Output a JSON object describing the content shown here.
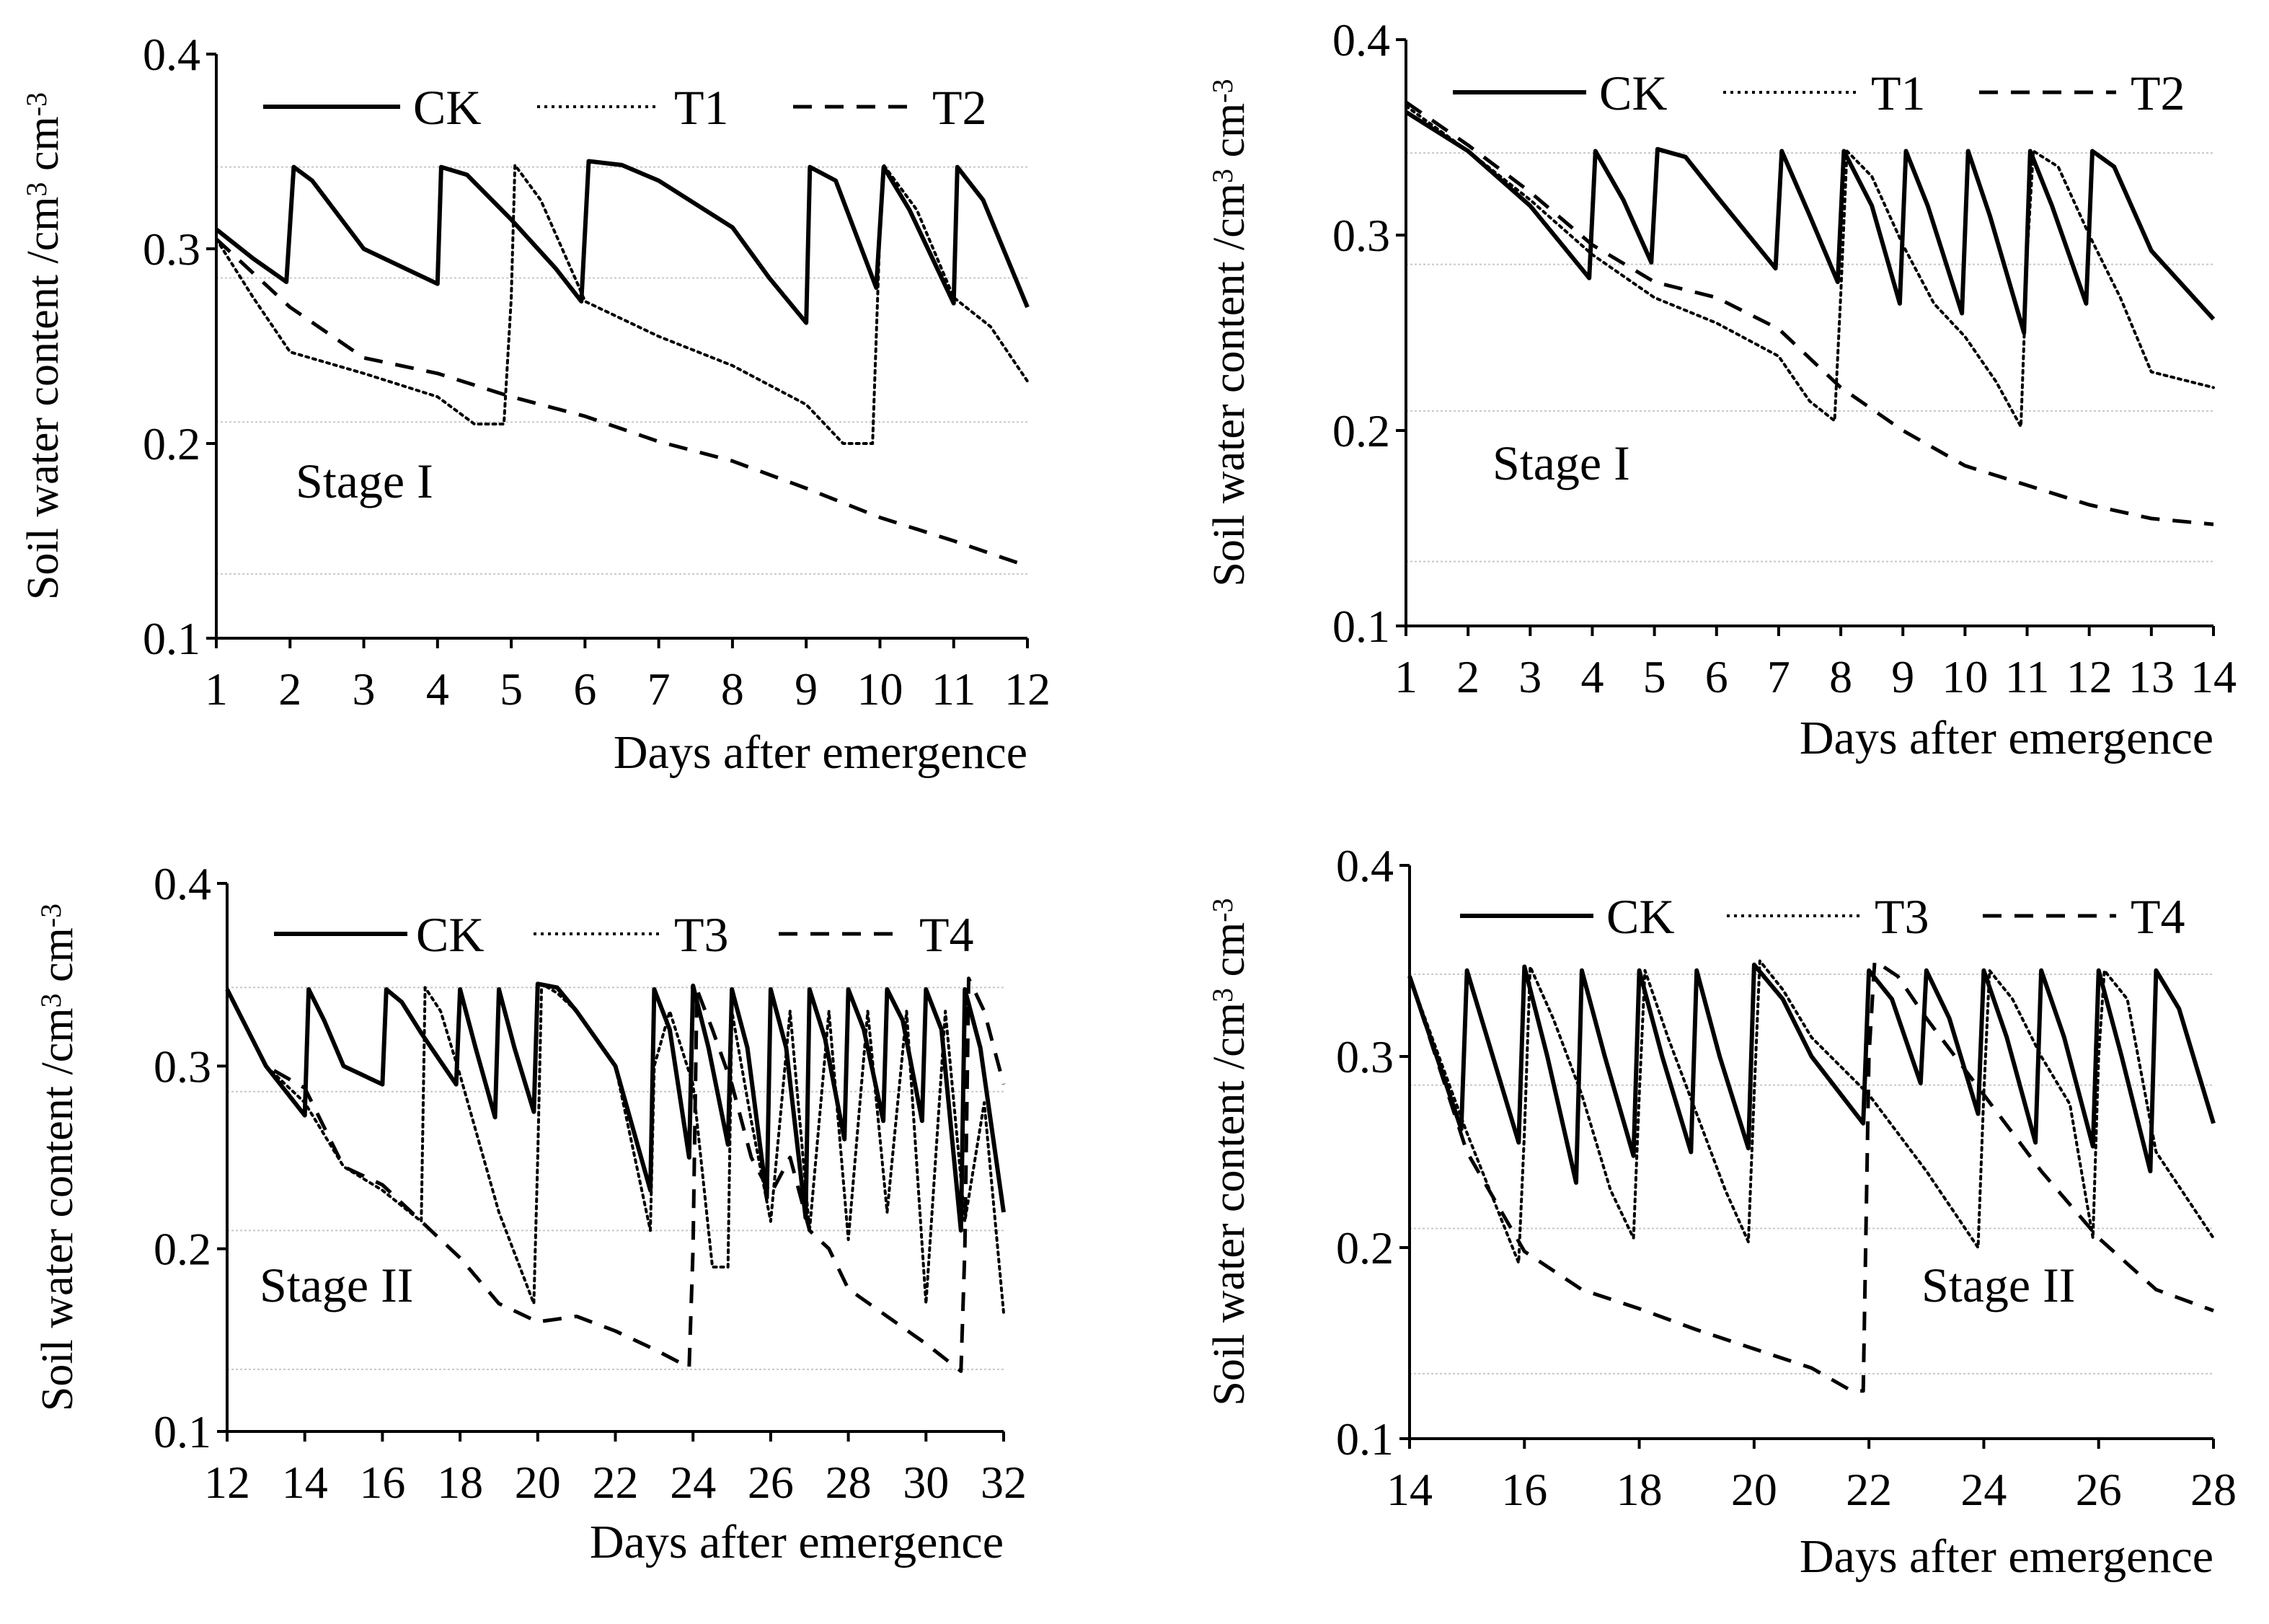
{
  "chart_data": [
    {
      "type": "line",
      "ylabel": "Soil water content /cm³ cm⁻³",
      "ylabel_main": "Soil water content /cm",
      "ylabel_sup1": "3",
      "ylabel_mid": " cm",
      "ylabel_sup2": "-3",
      "xlabel": "Days after emergence",
      "stage_label": "Stage I",
      "legend_position": "top",
      "xlim": [
        1,
        12
      ],
      "ylim": [
        0.1,
        0.4
      ],
      "x_ticks": [
        "1",
        "2",
        "3",
        "4",
        "5",
        "6",
        "7",
        "8",
        "9",
        "10",
        "11",
        "12"
      ],
      "y_ticks": [
        "0.1",
        "0.2",
        "0.3",
        "0.4"
      ],
      "reference_lines": [
        0.133,
        0.211,
        0.285,
        0.342
      ],
      "series": [
        {
          "name": "CK",
          "style": "solid",
          "x": [
            1,
            1.5,
            1.95,
            2.05,
            2.3,
            3,
            4,
            4.05,
            4.4,
            5,
            5.6,
            5.95,
            6.05,
            6.5,
            7,
            8,
            8.5,
            9,
            9.05,
            9.4,
            9.95,
            10.05,
            10.4,
            11,
            11.05,
            11.4,
            12
          ],
          "y": [
            0.31,
            0.295,
            0.283,
            0.342,
            0.335,
            0.3,
            0.282,
            0.342,
            0.338,
            0.315,
            0.29,
            0.273,
            0.345,
            0.343,
            0.335,
            0.311,
            0.285,
            0.262,
            0.342,
            0.335,
            0.28,
            0.342,
            0.32,
            0.272,
            0.342,
            0.325,
            0.27
          ]
        },
        {
          "name": "T1",
          "style": "dotted",
          "x": [
            1,
            1.5,
            2,
            3,
            4,
            4.5,
            4.9,
            5,
            5.05,
            5.4,
            5.9,
            6,
            7,
            8,
            9,
            9.5,
            9.9,
            10,
            10.05,
            10.5,
            11,
            11.5,
            12
          ],
          "y": [
            0.305,
            0.275,
            0.247,
            0.236,
            0.224,
            0.21,
            0.21,
            0.275,
            0.343,
            0.325,
            0.282,
            0.273,
            0.255,
            0.24,
            0.22,
            0.2,
            0.2,
            0.31,
            0.343,
            0.32,
            0.275,
            0.26,
            0.232
          ]
        },
        {
          "name": "T2",
          "style": "dashed",
          "x": [
            1,
            2,
            3,
            4,
            5,
            6,
            7,
            8,
            9,
            10,
            11,
            12
          ],
          "y": [
            0.305,
            0.27,
            0.244,
            0.236,
            0.224,
            0.214,
            0.201,
            0.191,
            0.177,
            0.162,
            0.15,
            0.137
          ]
        }
      ]
    },
    {
      "type": "line",
      "ylabel": "Soil water content /cm³ cm⁻³",
      "ylabel_main": "Soil water content /cm",
      "ylabel_sup1": "3",
      "ylabel_mid": " cm",
      "ylabel_sup2": "-3",
      "xlabel": "Days after emergence",
      "stage_label": "Stage I",
      "legend_position": "top",
      "xlim": [
        1,
        14
      ],
      "ylim": [
        0.1,
        0.4
      ],
      "x_ticks": [
        "1",
        "2",
        "3",
        "4",
        "5",
        "6",
        "7",
        "8",
        "9",
        "10",
        "11",
        "12",
        "13",
        "14"
      ],
      "y_ticks": [
        "0.1",
        "0.2",
        "0.3",
        "0.4"
      ],
      "reference_lines": [
        0.133,
        0.21,
        0.285,
        0.342
      ],
      "series": [
        {
          "name": "CK",
          "style": "solid",
          "x": [
            1,
            2,
            3,
            3.95,
            4.05,
            4.5,
            4.95,
            5.05,
            5.5,
            6,
            6.95,
            7.05,
            7.5,
            7.95,
            8.05,
            8.5,
            8.95,
            9.05,
            9.4,
            9.95,
            10.05,
            10.4,
            10.95,
            11.05,
            11.4,
            11.95,
            12.05,
            12.4,
            13,
            14
          ],
          "y": [
            0.363,
            0.343,
            0.315,
            0.278,
            0.343,
            0.318,
            0.286,
            0.344,
            0.34,
            0.32,
            0.283,
            0.343,
            0.31,
            0.276,
            0.343,
            0.315,
            0.265,
            0.343,
            0.315,
            0.26,
            0.343,
            0.31,
            0.25,
            0.343,
            0.315,
            0.265,
            0.343,
            0.335,
            0.292,
            0.257
          ]
        },
        {
          "name": "T1",
          "style": "dotted",
          "x": [
            1,
            2,
            3,
            4,
            5,
            6,
            7,
            7.5,
            7.9,
            8,
            8.1,
            8.5,
            9,
            9.5,
            10,
            10.5,
            10.9,
            11,
            11.1,
            11.5,
            12,
            12.5,
            13,
            14
          ],
          "y": [
            0.366,
            0.343,
            0.318,
            0.29,
            0.268,
            0.255,
            0.238,
            0.215,
            0.205,
            0.27,
            0.343,
            0.33,
            0.295,
            0.265,
            0.248,
            0.225,
            0.202,
            0.29,
            0.343,
            0.335,
            0.3,
            0.268,
            0.23,
            0.222
          ]
        },
        {
          "name": "T2",
          "style": "dashed",
          "x": [
            1,
            2,
            3,
            4,
            5,
            6,
            7,
            8,
            9,
            10,
            11,
            12,
            13,
            14
          ],
          "y": [
            0.368,
            0.346,
            0.322,
            0.295,
            0.276,
            0.268,
            0.252,
            0.222,
            0.2,
            0.182,
            0.172,
            0.162,
            0.155,
            0.152
          ]
        }
      ]
    },
    {
      "type": "line",
      "ylabel": "Soil water content /cm³ cm⁻³",
      "ylabel_main": "Soil water content /cm",
      "ylabel_sup1": "3",
      "ylabel_mid": " cm",
      "ylabel_sup2": "-3",
      "xlabel": "Days after emergence",
      "stage_label": "Stage II",
      "legend_position": "top",
      "xlim": [
        12,
        32
      ],
      "ylim": [
        0.1,
        0.4
      ],
      "x_ticks": [
        "12",
        "14",
        "16",
        "18",
        "20",
        "22",
        "24",
        "26",
        "28",
        "30",
        "32"
      ],
      "y_ticks": [
        "0.1",
        "0.2",
        "0.3",
        "0.4"
      ],
      "reference_lines": [
        0.134,
        0.21,
        0.286,
        0.343
      ],
      "series": [
        {
          "name": "CK",
          "style": "solid",
          "x": [
            12,
            13,
            14,
            14.1,
            14.5,
            15,
            16,
            16.1,
            16.5,
            17,
            17.9,
            18,
            18.4,
            18.9,
            19,
            19.4,
            19.9,
            20,
            20.5,
            21,
            22,
            22.9,
            23,
            23.4,
            23.9,
            24,
            24.4,
            24.9,
            25,
            25.4,
            25.9,
            26,
            26.4,
            26.9,
            27,
            27.4,
            27.9,
            28,
            28.4,
            28.9,
            29,
            29.4,
            29.9,
            30,
            30.4,
            30.9,
            31,
            31.4,
            32
          ],
          "y": [
            0.342,
            0.3,
            0.273,
            0.342,
            0.325,
            0.3,
            0.29,
            0.342,
            0.335,
            0.318,
            0.29,
            0.342,
            0.31,
            0.272,
            0.342,
            0.31,
            0.275,
            0.345,
            0.343,
            0.33,
            0.3,
            0.232,
            0.342,
            0.32,
            0.25,
            0.344,
            0.31,
            0.257,
            0.342,
            0.31,
            0.228,
            0.342,
            0.31,
            0.217,
            0.342,
            0.315,
            0.26,
            0.342,
            0.32,
            0.27,
            0.342,
            0.325,
            0.27,
            0.342,
            0.32,
            0.21,
            0.342,
            0.31,
            0.22
          ]
        },
        {
          "name": "T3",
          "style": "dotted",
          "x": [
            12,
            13,
            14,
            15,
            16,
            17,
            17.1,
            17.5,
            18,
            19,
            19.9,
            20,
            20.1,
            20.5,
            21,
            22,
            22.9,
            23,
            23.4,
            24,
            24.5,
            24.9,
            25,
            25.5,
            26,
            26.5,
            27,
            27.5,
            28,
            28.5,
            29,
            29.5,
            30,
            30.5,
            31,
            31.5,
            32
          ],
          "y": [
            0.342,
            0.3,
            0.28,
            0.245,
            0.232,
            0.215,
            0.343,
            0.33,
            0.295,
            0.22,
            0.17,
            0.25,
            0.345,
            0.34,
            0.33,
            0.3,
            0.21,
            0.3,
            0.33,
            0.29,
            0.19,
            0.19,
            0.33,
            0.27,
            0.215,
            0.33,
            0.21,
            0.33,
            0.205,
            0.33,
            0.22,
            0.33,
            0.17,
            0.33,
            0.215,
            0.28,
            0.165
          ]
        },
        {
          "name": "T4",
          "style": "dashed",
          "x": [
            12,
            13,
            14,
            15,
            16,
            17,
            18,
            19,
            20,
            21,
            22,
            23,
            23.9,
            24,
            24.1,
            24.5,
            25,
            25.5,
            26,
            26.5,
            27,
            27.5,
            28,
            29,
            30,
            30.9,
            31,
            31.1,
            31.5,
            32
          ],
          "y": [
            0.342,
            0.3,
            0.288,
            0.245,
            0.235,
            0.215,
            0.195,
            0.17,
            0.16,
            0.163,
            0.155,
            0.145,
            0.135,
            0.2,
            0.342,
            0.32,
            0.29,
            0.25,
            0.23,
            0.25,
            0.21,
            0.2,
            0.178,
            0.163,
            0.148,
            0.133,
            0.2,
            0.348,
            0.33,
            0.29
          ]
        }
      ]
    },
    {
      "type": "line",
      "ylabel": "Soil water content /cm³ cm⁻³",
      "ylabel_main": "Soil water content /cm",
      "ylabel_sup1": "3",
      "ylabel_mid": " cm",
      "ylabel_sup2": "-3",
      "xlabel": "Days after emergence",
      "stage_label": "Stage II",
      "legend_position": "top",
      "xlim": [
        14,
        28
      ],
      "ylim": [
        0.1,
        0.4
      ],
      "x_ticks": [
        "14",
        "16",
        "18",
        "20",
        "22",
        "24",
        "26",
        "28"
      ],
      "y_ticks": [
        "0.1",
        "0.2",
        "0.3",
        "0.4"
      ],
      "reference_lines": [
        0.134,
        0.21,
        0.285,
        0.343
      ],
      "series": [
        {
          "name": "CK",
          "style": "solid",
          "x": [
            14,
            14.9,
            15,
            15.4,
            15.9,
            16,
            16.4,
            16.9,
            17,
            17.4,
            17.9,
            18,
            18.4,
            18.9,
            19,
            19.4,
            19.9,
            20,
            20.5,
            21,
            21.9,
            22,
            22.4,
            22.9,
            23,
            23.4,
            23.9,
            24,
            24.4,
            24.9,
            25,
            25.4,
            25.9,
            26,
            26.4,
            26.9,
            27,
            27.4,
            28
          ],
          "y": [
            0.342,
            0.262,
            0.345,
            0.305,
            0.255,
            0.347,
            0.3,
            0.234,
            0.345,
            0.3,
            0.248,
            0.345,
            0.3,
            0.25,
            0.345,
            0.3,
            0.252,
            0.348,
            0.33,
            0.3,
            0.265,
            0.345,
            0.33,
            0.286,
            0.345,
            0.32,
            0.27,
            0.345,
            0.31,
            0.255,
            0.345,
            0.31,
            0.253,
            0.345,
            0.3,
            0.24,
            0.345,
            0.325,
            0.265
          ]
        },
        {
          "name": "T3",
          "style": "dotted",
          "x": [
            14,
            15,
            15.9,
            16,
            16.1,
            16.5,
            17,
            17.5,
            17.9,
            18,
            18.1,
            18.5,
            19,
            19.5,
            19.9,
            20,
            20.1,
            20.5,
            21,
            22,
            23,
            23.9,
            24,
            24.1,
            24.5,
            25,
            25.5,
            25.9,
            26,
            26.1,
            26.5,
            27,
            28
          ],
          "y": [
            0.342,
            0.26,
            0.192,
            0.26,
            0.347,
            0.32,
            0.28,
            0.23,
            0.205,
            0.28,
            0.345,
            0.31,
            0.27,
            0.23,
            0.203,
            0.28,
            0.35,
            0.335,
            0.31,
            0.28,
            0.24,
            0.2,
            0.28,
            0.345,
            0.33,
            0.3,
            0.275,
            0.205,
            0.3,
            0.345,
            0.33,
            0.25,
            0.205
          ]
        },
        {
          "name": "T4",
          "style": "dashed",
          "x": [
            14,
            15,
            16,
            17,
            18,
            19,
            20,
            21,
            21.7,
            21.9,
            22,
            22.1,
            22.5,
            23,
            24,
            25,
            26,
            27,
            28
          ],
          "y": [
            0.342,
            0.25,
            0.198,
            0.178,
            0.168,
            0.157,
            0.147,
            0.137,
            0.125,
            0.125,
            0.3,
            0.35,
            0.342,
            0.32,
            0.28,
            0.24,
            0.205,
            0.178,
            0.167
          ]
        }
      ]
    }
  ]
}
